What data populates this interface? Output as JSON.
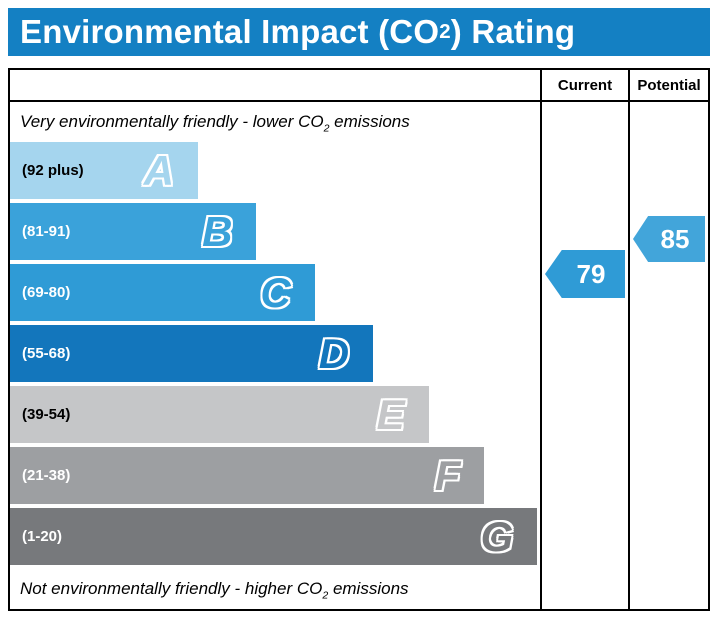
{
  "title": {
    "prefix": "Environmental Impact (CO",
    "sub": "2",
    "suffix": ") Rating"
  },
  "header": {
    "current": "Current",
    "potential": "Potential"
  },
  "top_note": {
    "prefix": "Very environmentally friendly - lower CO",
    "sub": "2",
    "suffix": " emissions"
  },
  "bottom_note": {
    "prefix": "Not environmentally friendly - higher CO",
    "sub": "2",
    "suffix": " emissions"
  },
  "chart_data": {
    "type": "bar",
    "title": "Environmental Impact (CO2) Rating",
    "bands": [
      {
        "letter": "A",
        "range": "(92 plus)",
        "range_min": 92,
        "range_max": 100,
        "color": "#a5d5ee",
        "label_color": "#000000",
        "width_pct": 35.5
      },
      {
        "letter": "B",
        "range": "(81-91)",
        "range_min": 81,
        "range_max": 91,
        "color": "#3aa2da",
        "label_color": "#ffffff",
        "width_pct": 46.5
      },
      {
        "letter": "C",
        "range": "(69-80)",
        "range_min": 69,
        "range_max": 80,
        "color": "#2f9bd6",
        "label_color": "#ffffff",
        "width_pct": 57.5
      },
      {
        "letter": "D",
        "range": "(55-68)",
        "range_min": 55,
        "range_max": 68,
        "color": "#1376bc",
        "label_color": "#ffffff",
        "width_pct": 68.5
      },
      {
        "letter": "E",
        "range": "(39-54)",
        "range_min": 39,
        "range_max": 54,
        "color": "#c5c6c8",
        "label_color": "#000000",
        "width_pct": 79
      },
      {
        "letter": "F",
        "range": "(21-38)",
        "range_min": 21,
        "range_max": 38,
        "color": "#9d9fa2",
        "label_color": "#ffffff",
        "width_pct": 89.5
      },
      {
        "letter": "G",
        "range": "(1-20)",
        "range_min": 1,
        "range_max": 20,
        "color": "#77797c",
        "label_color": "#ffffff",
        "width_pct": 99.5
      }
    ],
    "current": {
      "value": "79",
      "band": "C",
      "color": "#2f9bd6"
    },
    "potential": {
      "value": "85",
      "band": "B",
      "color": "#42a5da"
    }
  }
}
